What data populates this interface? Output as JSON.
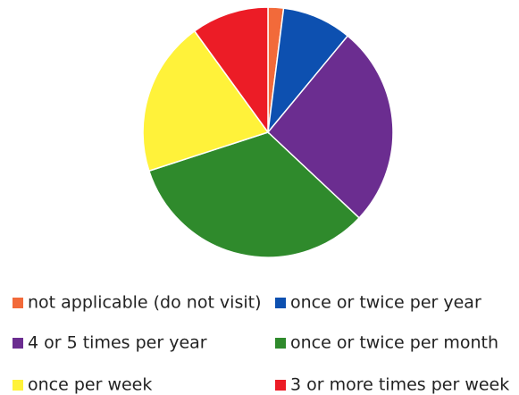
{
  "chart_data": {
    "type": "pie",
    "categories": [
      "not applicable (do not visit)",
      "once or twice per year",
      "4 or 5 times per year",
      "once or twice per month",
      "once per week",
      "3 or more times per week"
    ],
    "values": [
      2,
      9,
      26,
      33,
      20,
      10
    ],
    "colors": [
      "#f26a3a",
      "#0d50b0",
      "#6b2d90",
      "#2f8a2c",
      "#fff23a",
      "#ec1c26"
    ],
    "legend": "bottom"
  }
}
